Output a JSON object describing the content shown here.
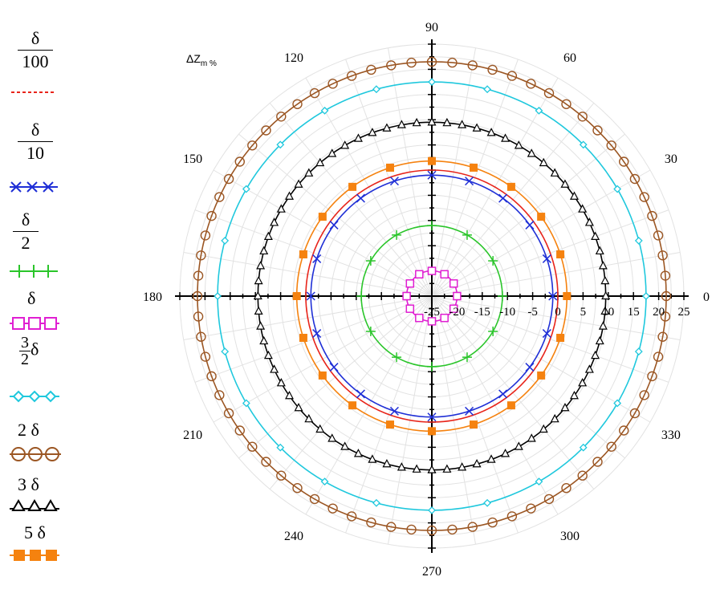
{
  "chart_data": {
    "type": "polar",
    "title": "ΔZm %",
    "radial_axis": {
      "range": [
        -25,
        25
      ],
      "tick_labels": [
        "-25",
        "-20",
        "-15",
        "-10",
        "-5",
        "0",
        "5",
        "10",
        "15",
        "20",
        "25"
      ]
    },
    "angular_axis": {
      "unit": "degrees",
      "tick_labels": [
        "0",
        "30",
        "60",
        "90",
        "120",
        "150",
        "180",
        "210",
        "240",
        "270",
        "300",
        "330"
      ]
    },
    "grid": true,
    "legend_position": "left",
    "series": [
      {
        "name_parts": {
          "top": "δ",
          "bottom": "100"
        },
        "radius": 0,
        "color": "#e8241a",
        "marker": "none",
        "dash": "dashed-legend"
      },
      {
        "name_parts": {
          "top": "δ",
          "bottom": "10"
        },
        "radius": -1,
        "color": "#1f2fd6",
        "marker": "x",
        "marker_count": 20
      },
      {
        "name_parts": {
          "top": "δ",
          "bottom": "2"
        },
        "radius": -11,
        "color": "#2ac52a",
        "marker": "plus",
        "marker_count": 12
      },
      {
        "name_parts": {
          "top": "δ",
          "bottom": ""
        },
        "radius": -20,
        "color": "#e01fd2",
        "marker": "square-open",
        "marker_count": 12
      },
      {
        "name_parts": {
          "top": "3",
          "bottom": "2",
          "suffix": "δ"
        },
        "radius": 17.5,
        "color": "#1fc8dd",
        "marker": "diamond-open",
        "marker_count": 24
      },
      {
        "name_parts": {
          "top": "2 δ",
          "bottom": ""
        },
        "radius": 21.5,
        "color": "#9b5623",
        "marker": "circle-open",
        "marker_count": 72
      },
      {
        "name_parts": {
          "top": "3 δ",
          "bottom": ""
        },
        "radius": 9.5,
        "color": "#000000",
        "marker": "triangle-open",
        "marker_count": 72
      },
      {
        "name_parts": {
          "top": "5 δ",
          "bottom": ""
        },
        "radius": 1.8,
        "color": "#f5820f",
        "marker": "square-filled",
        "marker_count": 20
      }
    ]
  }
}
